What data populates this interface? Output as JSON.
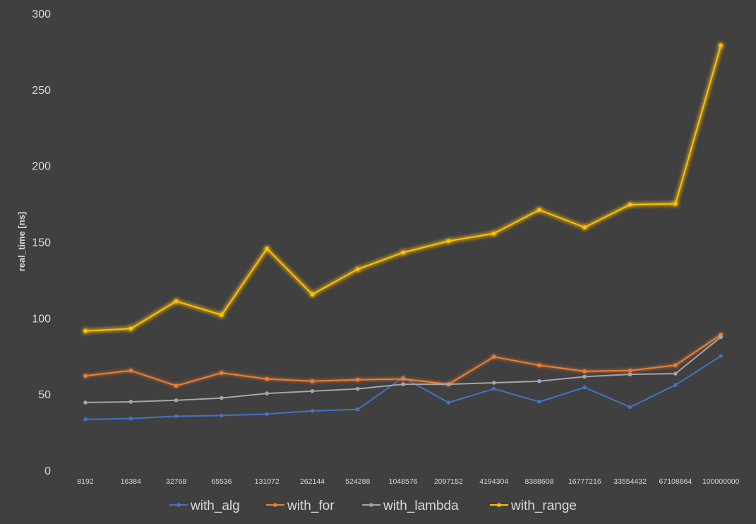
{
  "chart_data": {
    "type": "line",
    "title": "",
    "xlabel": "",
    "ylabel": "real_time [ns]",
    "ylim": [
      0,
      300
    ],
    "yticks": [
      "0",
      "50",
      "100",
      "150",
      "200",
      "250",
      "300"
    ],
    "grid": false,
    "legend_position": "bottom",
    "categories": [
      "8192",
      "16384",
      "32768",
      "65536",
      "131072",
      "262144",
      "524288",
      "1048576",
      "2097152",
      "4194304",
      "8388608",
      "16777216",
      "33554432",
      "67108864",
      "100000000"
    ],
    "series": [
      {
        "name": "with_alg",
        "color": "#4472c4",
        "values": [
          33.5,
          34,
          35.5,
          36,
          37,
          39,
          40,
          61,
          44.5,
          53.5,
          45,
          54.5,
          41.5,
          56,
          75
        ]
      },
      {
        "name": "with_for",
        "color": "#ed7d31",
        "values": [
          62,
          65.5,
          55.5,
          64,
          60,
          58.5,
          59.5,
          60,
          56.5,
          74.5,
          69,
          65,
          65.5,
          69,
          89
        ]
      },
      {
        "name": "with_lambda",
        "color": "#a5a5a5",
        "values": [
          44.5,
          45,
          46,
          47.5,
          50.5,
          52,
          53.5,
          56.5,
          56.5,
          57.5,
          58.5,
          61.5,
          63,
          63.5,
          87.5
        ]
      },
      {
        "name": "with_range",
        "color": "#ffc000",
        "values": [
          91.5,
          93,
          111,
          102,
          145.5,
          115.5,
          132,
          143,
          150.5,
          155.5,
          171,
          159.5,
          174.5,
          175,
          279
        ]
      }
    ]
  }
}
